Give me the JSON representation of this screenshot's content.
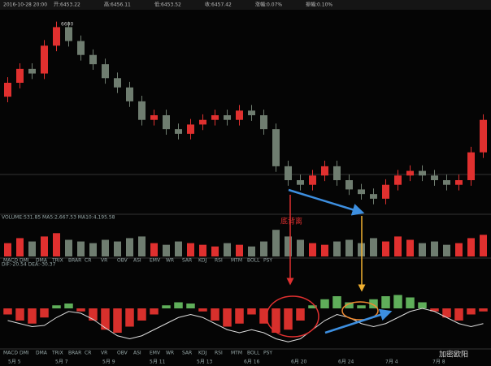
{
  "header": [
    "2016-10-28 20:00",
    "开:6453.22",
    "高:6456.11",
    "低:6453.52",
    "收:6457.42",
    "涨幅:0.07%",
    "振幅:0.10%"
  ],
  "chart_data": {
    "type": "candlestick",
    "price_label": "6600",
    "up_color": "#e0302f",
    "down_color": "#6f7d70",
    "ylim": [
      6200,
      6620
    ],
    "open": [
      6450,
      6480,
      6510,
      6500,
      6560,
      6600,
      6570,
      6540,
      6520,
      6490,
      6470,
      6440,
      6400,
      6410,
      6380,
      6370,
      6390,
      6400,
      6410,
      6400,
      6420,
      6410,
      6380,
      6300,
      6270,
      6260,
      6280,
      6300,
      6270,
      6250,
      6240,
      6230,
      6260,
      6280,
      6290,
      6280,
      6270,
      6260,
      6270,
      6330
    ],
    "high": [
      6492,
      6522,
      6522,
      6572,
      6612,
      6612,
      6582,
      6552,
      6532,
      6502,
      6482,
      6452,
      6422,
      6422,
      6392,
      6402,
      6412,
      6422,
      6422,
      6432,
      6432,
      6422,
      6392,
      6312,
      6282,
      6292,
      6312,
      6312,
      6282,
      6262,
      6252,
      6272,
      6292,
      6302,
      6302,
      6292,
      6282,
      6282,
      6342,
      6412
    ],
    "low": [
      6438,
      6468,
      6488,
      6488,
      6548,
      6558,
      6528,
      6508,
      6478,
      6458,
      6428,
      6388,
      6388,
      6368,
      6358,
      6358,
      6378,
      6388,
      6388,
      6388,
      6398,
      6368,
      6288,
      6258,
      6248,
      6248,
      6268,
      6258,
      6238,
      6228,
      6218,
      6218,
      6248,
      6268,
      6268,
      6258,
      6248,
      6248,
      6258,
      6318
    ],
    "close": [
      6480,
      6510,
      6500,
      6560,
      6600,
      6570,
      6540,
      6520,
      6490,
      6470,
      6440,
      6400,
      6410,
      6380,
      6370,
      6390,
      6400,
      6410,
      6400,
      6420,
      6410,
      6380,
      6300,
      6270,
      6260,
      6280,
      6300,
      6270,
      6250,
      6240,
      6230,
      6260,
      6280,
      6290,
      6280,
      6270,
      6260,
      6270,
      6330,
      6400
    ],
    "volume": {
      "label": "VOLUME:531.85  MA5:2,667.53  MA10:4,195.58",
      "ylim": [
        0,
        100
      ],
      "values": [
        40,
        55,
        45,
        60,
        70,
        50,
        45,
        40,
        50,
        45,
        55,
        60,
        40,
        35,
        45,
        40,
        35,
        30,
        40,
        35,
        30,
        45,
        80,
        60,
        50,
        40,
        35,
        45,
        50,
        40,
        55,
        45,
        60,
        50,
        40,
        45,
        35,
        40,
        55,
        65
      ]
    },
    "macd": {
      "label": "DIF:-20.54  DEA:-30.37",
      "ylim": [
        -60,
        60
      ],
      "pos_color": "#5fae5a",
      "neg_color": "#d8302c",
      "values": [
        -10,
        -20,
        -25,
        -15,
        5,
        8,
        -5,
        -20,
        -35,
        -40,
        -30,
        -20,
        -10,
        5,
        10,
        8,
        -5,
        -20,
        -30,
        -25,
        -10,
        -25,
        -40,
        -35,
        -20,
        5,
        15,
        20,
        10,
        5,
        15,
        20,
        22,
        18,
        10,
        -5,
        -15,
        -20,
        -10,
        -5
      ],
      "dif": [
        -20,
        -25,
        -30,
        -28,
        -15,
        -5,
        -8,
        -18,
        -32,
        -45,
        -50,
        -45,
        -35,
        -25,
        -15,
        -10,
        -15,
        -25,
        -35,
        -40,
        -35,
        -40,
        -50,
        -55,
        -50,
        -35,
        -20,
        -10,
        -15,
        -25,
        -30,
        -25,
        -15,
        -5,
        0,
        -5,
        -15,
        -25,
        -30,
        -25
      ]
    },
    "annotation": "底背离",
    "x_axis_labels": [
      "5月 5",
      "5月 7",
      "5月 9",
      "5月 11",
      "5月 13",
      "6月 16",
      "6月 20",
      "6月 24",
      "7月 4",
      "7月 8"
    ]
  },
  "indicator_tabs": [
    "MACD",
    "DMI",
    "DMA",
    "TRIX",
    "BRAR",
    "CR",
    "VR",
    "OBV",
    "ASI",
    "EMV",
    "WR",
    "SAR",
    "KDJ",
    "RSI",
    "MTM",
    "BOLL",
    "PSY"
  ],
  "watermark": "加密欧阳"
}
